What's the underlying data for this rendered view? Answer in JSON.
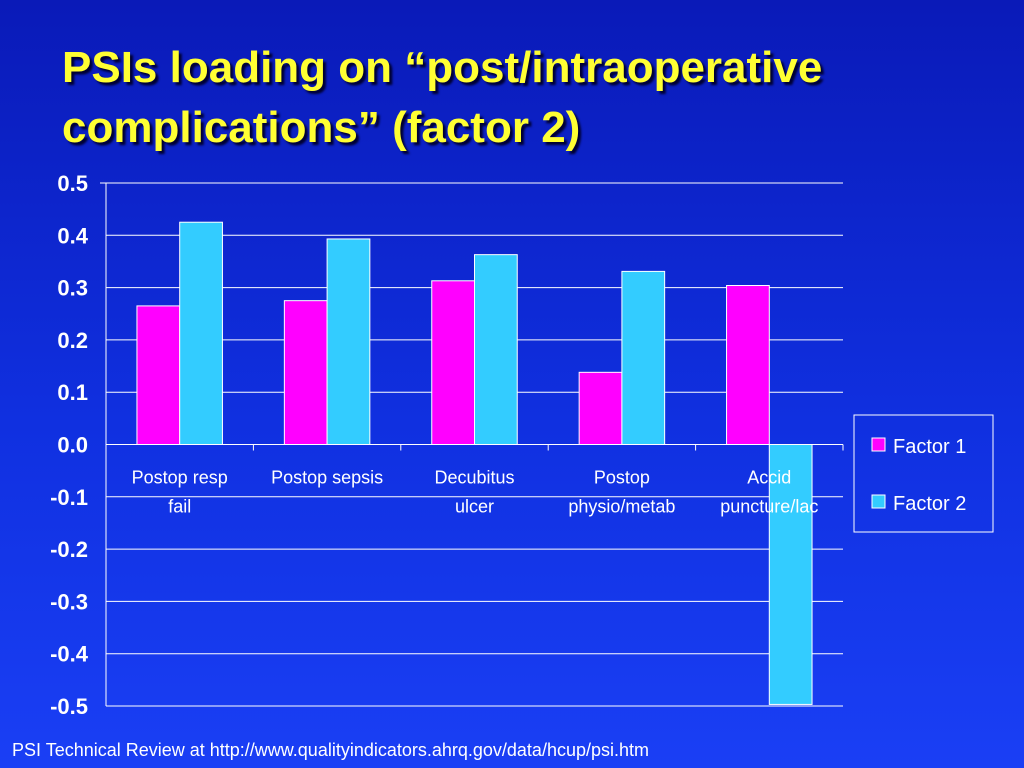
{
  "slide": {
    "title": "PSIs loading on “post/intraoperative complications” (factor 2)",
    "footer": "PSI Technical Review at http://www.qualityindicators.ahrq.gov/data/hcup/psi.htm"
  },
  "colors": {
    "background": "#1030e0",
    "title": "#ffff33",
    "factor1": "#ff00ff",
    "factor2": "#33ccff",
    "axis_text": "#ffffff"
  },
  "chart_data": {
    "type": "bar",
    "categories": [
      [
        "Postop resp",
        "fail"
      ],
      [
        "Postop sepsis"
      ],
      [
        "Decubitus",
        "ulcer"
      ],
      [
        "Postop",
        "physio/metab"
      ],
      [
        "Accid",
        "puncture/lac"
      ]
    ],
    "series": [
      {
        "name": "Factor 1",
        "values": [
          0.265,
          0.275,
          0.313,
          0.138,
          0.304
        ],
        "color": "#ff00ff"
      },
      {
        "name": "Factor 2",
        "values": [
          0.425,
          0.393,
          0.363,
          0.331,
          -0.497
        ],
        "color": "#33ccff"
      }
    ],
    "ylim": [
      -0.5,
      0.5
    ],
    "yticks": [
      "0.5",
      "0.4",
      "0.3",
      "0.2",
      "0.1",
      "0.0",
      "-0.1",
      "-0.2",
      "-0.3",
      "-0.4",
      "-0.5"
    ],
    "ytick_values": [
      0.5,
      0.4,
      0.3,
      0.2,
      0.1,
      0.0,
      -0.1,
      -0.2,
      -0.3,
      -0.4,
      -0.5
    ],
    "grid": true,
    "legend_position": "right"
  }
}
